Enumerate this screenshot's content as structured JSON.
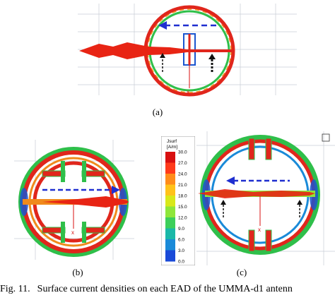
{
  "figure": {
    "caption_label": "Fig. 11.",
    "caption_text": "Surface current densities on each EAD of the UMMA-d1 antenn",
    "panels": [
      {
        "label": "(a)"
      },
      {
        "label": "(b)"
      },
      {
        "label": "(c)"
      }
    ]
  },
  "legend": {
    "title_line1": "Jsurf",
    "title_line2": "[A/m]",
    "ticks": [
      "30.0",
      "27.0",
      "24.0",
      "21.0",
      "18.0",
      "15.0",
      "12.0",
      "9.0",
      "6.0",
      "3.0",
      "0.0"
    ],
    "colors": [
      "#d81010",
      "#ff3a1a",
      "#ff8c1a",
      "#ffc21a",
      "#d8e81a",
      "#8ee63a",
      "#3ccf5a",
      "#1ab8a8",
      "#1a8ad8",
      "#1a4ad8",
      "#1a1ab8"
    ]
  },
  "axis_marker": "x",
  "colors": {
    "ring_red": "#e0261c",
    "ring_orange": "#f08a1c",
    "ring_green": "#2fbf4a",
    "ring_blue": "#1a55d0",
    "arrow_blue": "#1f2fd0",
    "arrow_black": "#111111",
    "grid": "#c7ccd6"
  }
}
